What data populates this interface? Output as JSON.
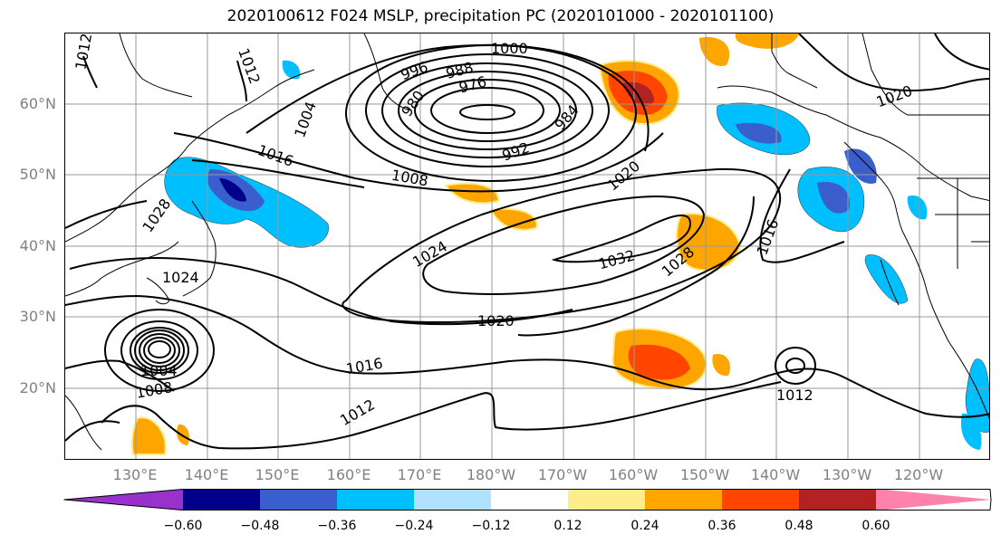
{
  "title": "2020100612 F024 MSLP, precipitation PC (2020101000 - 2020101100)",
  "lat_labels": [
    "60°N",
    "50°N",
    "40°N",
    "30°N",
    "20°N"
  ],
  "lon_labels": [
    "130°E",
    "140°E",
    "150°E",
    "160°E",
    "170°E",
    "180°W",
    "170°W",
    "160°W",
    "150°W",
    "140°W",
    "130°W",
    "120°W"
  ],
  "contour_labels": [
    "1012",
    "1012",
    "1000",
    "996",
    "988",
    "976",
    "980",
    "984",
    "992",
    "1004",
    "1016",
    "1008",
    "1020",
    "1028",
    "1024",
    "1032",
    "1028",
    "1016",
    "1020",
    "1024",
    "1020",
    "1016",
    "1004",
    "1008",
    "1012",
    "1012"
  ],
  "colorbar": {
    "ticks": [
      "−0.60",
      "−0.48",
      "−0.36",
      "−0.24",
      "−0.12",
      "0.12",
      "0.24",
      "0.36",
      "0.48",
      "0.60"
    ],
    "colors": [
      "#9932cc",
      "#00008b",
      "#3a5fcd",
      "#00bfff",
      "#b0e2ff",
      "#ffffff",
      "#ffec8b",
      "#ffa500",
      "#ff4500",
      "#b22222",
      "#ff82ab"
    ]
  }
}
